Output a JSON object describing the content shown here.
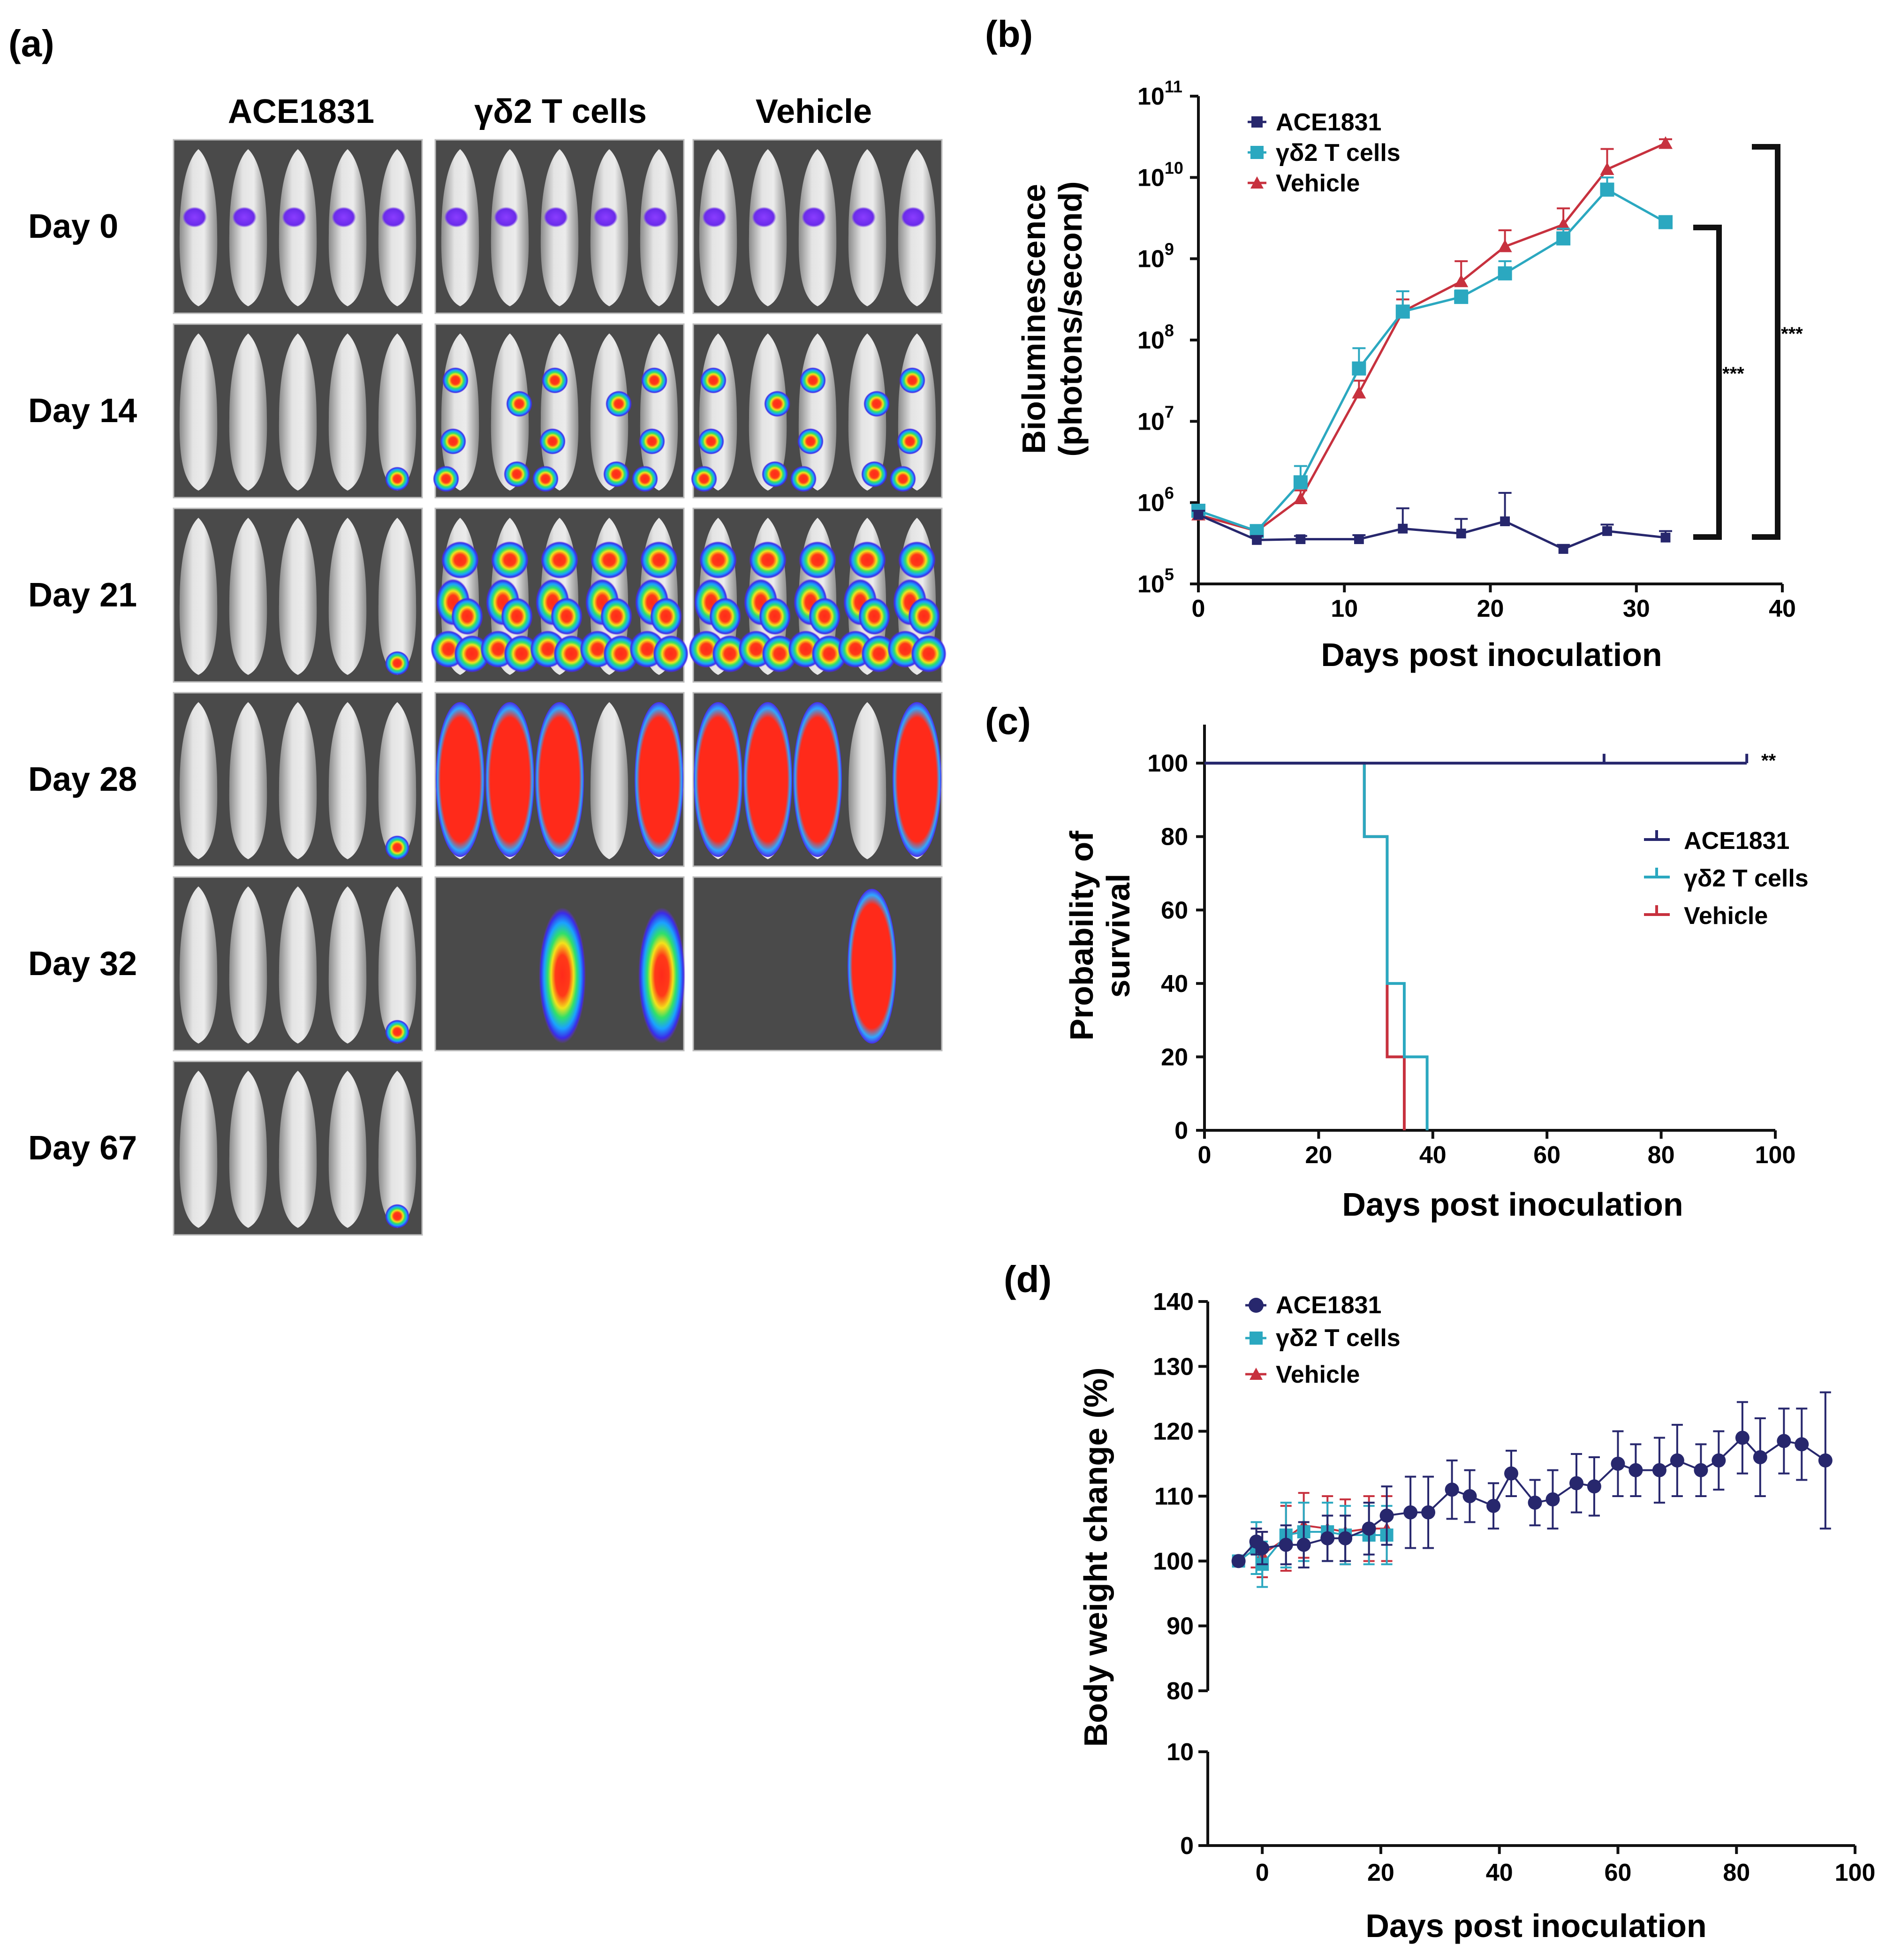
{
  "panel_a": {
    "label": "(a)",
    "columns": [
      "ACE1831",
      "γδ2 T cells",
      "Vehicle"
    ],
    "rows": [
      {
        "day": "Day 0",
        "panels": [
          "low",
          "low",
          "low"
        ]
      },
      {
        "day": "Day 14",
        "panels": [
          "tumor1",
          "spread",
          "spread"
        ]
      },
      {
        "day": "Day 21",
        "panels": [
          "tumor1",
          "heavy",
          "heavy"
        ]
      },
      {
        "day": "Day 28",
        "panels": [
          "tumor1",
          "severe",
          "severe"
        ]
      },
      {
        "day": "Day 32",
        "panels": [
          "tumor1",
          "dark2",
          "dark1"
        ]
      },
      {
        "day": "Day 67",
        "panels": [
          "tumor1",
          "none",
          "none"
        ]
      }
    ]
  },
  "colors": {
    "ace": "#27276d",
    "gd": "#2ba8c0",
    "veh": "#c7313e",
    "axis": "#111111"
  },
  "chart_data": [
    {
      "id": "b",
      "label": "(b)",
      "type": "line",
      "ylabel1": "Bioluminescence",
      "ylabel2": "(photons/second)",
      "xlabel": "Days post inoculation",
      "xlim": [
        0,
        40
      ],
      "ylim": [
        5,
        11
      ],
      "yscale": "log10",
      "xticks": [
        "0",
        "10",
        "20",
        "30",
        "40"
      ],
      "yticks": [
        {
          "base": "10",
          "exp": "5"
        },
        {
          "base": "10",
          "exp": "6"
        },
        {
          "base": "10",
          "exp": "7"
        },
        {
          "base": "10",
          "exp": "8"
        },
        {
          "base": "10",
          "exp": "9"
        },
        {
          "base": "10",
          "exp": "10"
        },
        {
          "base": "10",
          "exp": "11"
        }
      ],
      "legend": [
        "ACE1831",
        "γδ2 T cells",
        "Vehicle"
      ],
      "significance": [
        "***",
        "***"
      ],
      "series": [
        {
          "name": "ACE1831",
          "x": [
            0,
            4,
            7,
            11,
            14,
            18,
            21,
            25,
            28,
            32
          ],
          "log10_y": [
            5.85,
            5.54,
            5.55,
            5.55,
            5.68,
            5.62,
            5.77,
            5.43,
            5.65,
            5.57
          ],
          "err": [
            0.05,
            0.05,
            0.04,
            0.05,
            0.25,
            0.18,
            0.35,
            0.05,
            0.08,
            0.08
          ]
        },
        {
          "name": "γδ2 T cells",
          "x": [
            0,
            4,
            7,
            11,
            14,
            18,
            21,
            25,
            28,
            32
          ],
          "log10_y": [
            5.9,
            5.65,
            6.25,
            7.65,
            8.35,
            8.53,
            8.82,
            9.25,
            9.85,
            9.45
          ],
          "err": [
            0.05,
            0.05,
            0.2,
            0.25,
            0.25,
            0.08,
            0.15,
            0.12,
            0.15,
            0.05
          ]
        },
        {
          "name": "Vehicle",
          "x": [
            0,
            4,
            7,
            11,
            14,
            18,
            21,
            25,
            28,
            32
          ],
          "log10_y": [
            5.85,
            5.65,
            6.05,
            7.35,
            8.35,
            8.72,
            9.15,
            9.42,
            10.1,
            10.42
          ],
          "err": [
            0.05,
            0.05,
            0.1,
            0.15,
            0.15,
            0.25,
            0.2,
            0.2,
            0.25,
            0.05
          ]
        }
      ]
    },
    {
      "id": "c",
      "label": "(c)",
      "type": "line",
      "ylabel1": "Probability of",
      "ylabel2": "survival",
      "xlabel": "Days post inoculation",
      "xlim": [
        0,
        100
      ],
      "ylim": [
        0,
        100
      ],
      "xticks": [
        "0",
        "20",
        "40",
        "60",
        "80",
        "100"
      ],
      "yticks": [
        "0",
        "20",
        "40",
        "60",
        "80",
        "100"
      ],
      "legend": [
        "ACE1831",
        "γδ2 T cells",
        "Vehicle"
      ],
      "significance": "**",
      "series": [
        {
          "name": "ACE1831",
          "x": [
            0,
            95
          ],
          "y": [
            100,
            100
          ],
          "censor_x": [
            70,
            95
          ]
        },
        {
          "name": "γδ2 T cells",
          "x": [
            0,
            28,
            28,
            32,
            32,
            35,
            35,
            39,
            39
          ],
          "y": [
            100,
            100,
            80,
            80,
            40,
            40,
            20,
            20,
            0
          ]
        },
        {
          "name": "Vehicle",
          "x": [
            0,
            28,
            28,
            32,
            32,
            35,
            35
          ],
          "y": [
            100,
            100,
            80,
            80,
            20,
            20,
            0
          ]
        }
      ]
    },
    {
      "id": "d",
      "label": "(d)",
      "type": "scatter",
      "ylabel": "Body weight change (%)",
      "xlabel": "Days post inoculation",
      "xlim": [
        -5,
        100
      ],
      "ylim_upper": [
        80,
        140
      ],
      "ylim_lower": [
        0,
        10
      ],
      "xticks": [
        "0",
        "20",
        "40",
        "60",
        "80",
        "100"
      ],
      "yticks_upper": [
        "80",
        "90",
        "100",
        "110",
        "120",
        "130",
        "140"
      ],
      "yticks_lower": [
        "0",
        "10"
      ],
      "legend": [
        "ACE1831",
        "γδ2 T cells",
        "Vehicle"
      ],
      "series": [
        {
          "name": "ACE1831",
          "x": [
            -4,
            -1,
            0,
            4,
            7,
            11,
            14,
            18,
            21,
            25,
            28,
            32,
            35,
            39,
            42,
            46,
            49,
            53,
            56,
            60,
            63,
            67,
            70,
            74,
            77,
            81,
            84,
            88,
            91,
            95
          ],
          "y": [
            100,
            103,
            102,
            102.5,
            102.5,
            103.5,
            103.5,
            105,
            107,
            107.5,
            107.5,
            111,
            110,
            108.5,
            113.5,
            109,
            109.5,
            112,
            111.5,
            115,
            114,
            114,
            115.5,
            114,
            115.5,
            119,
            116,
            118.5,
            118,
            115.5
          ],
          "err": [
            0.5,
            2,
            2.5,
            3,
            3.5,
            3.5,
            3.5,
            4,
            4.5,
            5.5,
            5.5,
            4.5,
            4,
            3.5,
            3.5,
            3.5,
            4.5,
            4.5,
            4.5,
            5,
            4,
            5,
            5.5,
            4,
            4.5,
            5.5,
            6,
            5,
            5.5,
            10.5
          ]
        },
        {
          "name": "γδ2 T cells",
          "x": [
            -4,
            -1,
            0,
            4,
            7,
            11,
            14,
            18,
            21
          ],
          "y": [
            100,
            102,
            99.5,
            104,
            104.5,
            104.5,
            104,
            104,
            104
          ],
          "err": [
            0.5,
            4,
            3.5,
            5,
            4.5,
            4.5,
            4.5,
            4.5,
            4.5
          ]
        },
        {
          "name": "Vehicle",
          "x": [
            -4,
            -1,
            0,
            4,
            7,
            11,
            14,
            18,
            21
          ],
          "y": [
            100,
            102,
            101,
            103.5,
            105.5,
            105,
            104.5,
            105,
            105
          ],
          "err": [
            0.5,
            3,
            3.5,
            5,
            5,
            5,
            5,
            5,
            5
          ]
        }
      ]
    }
  ]
}
